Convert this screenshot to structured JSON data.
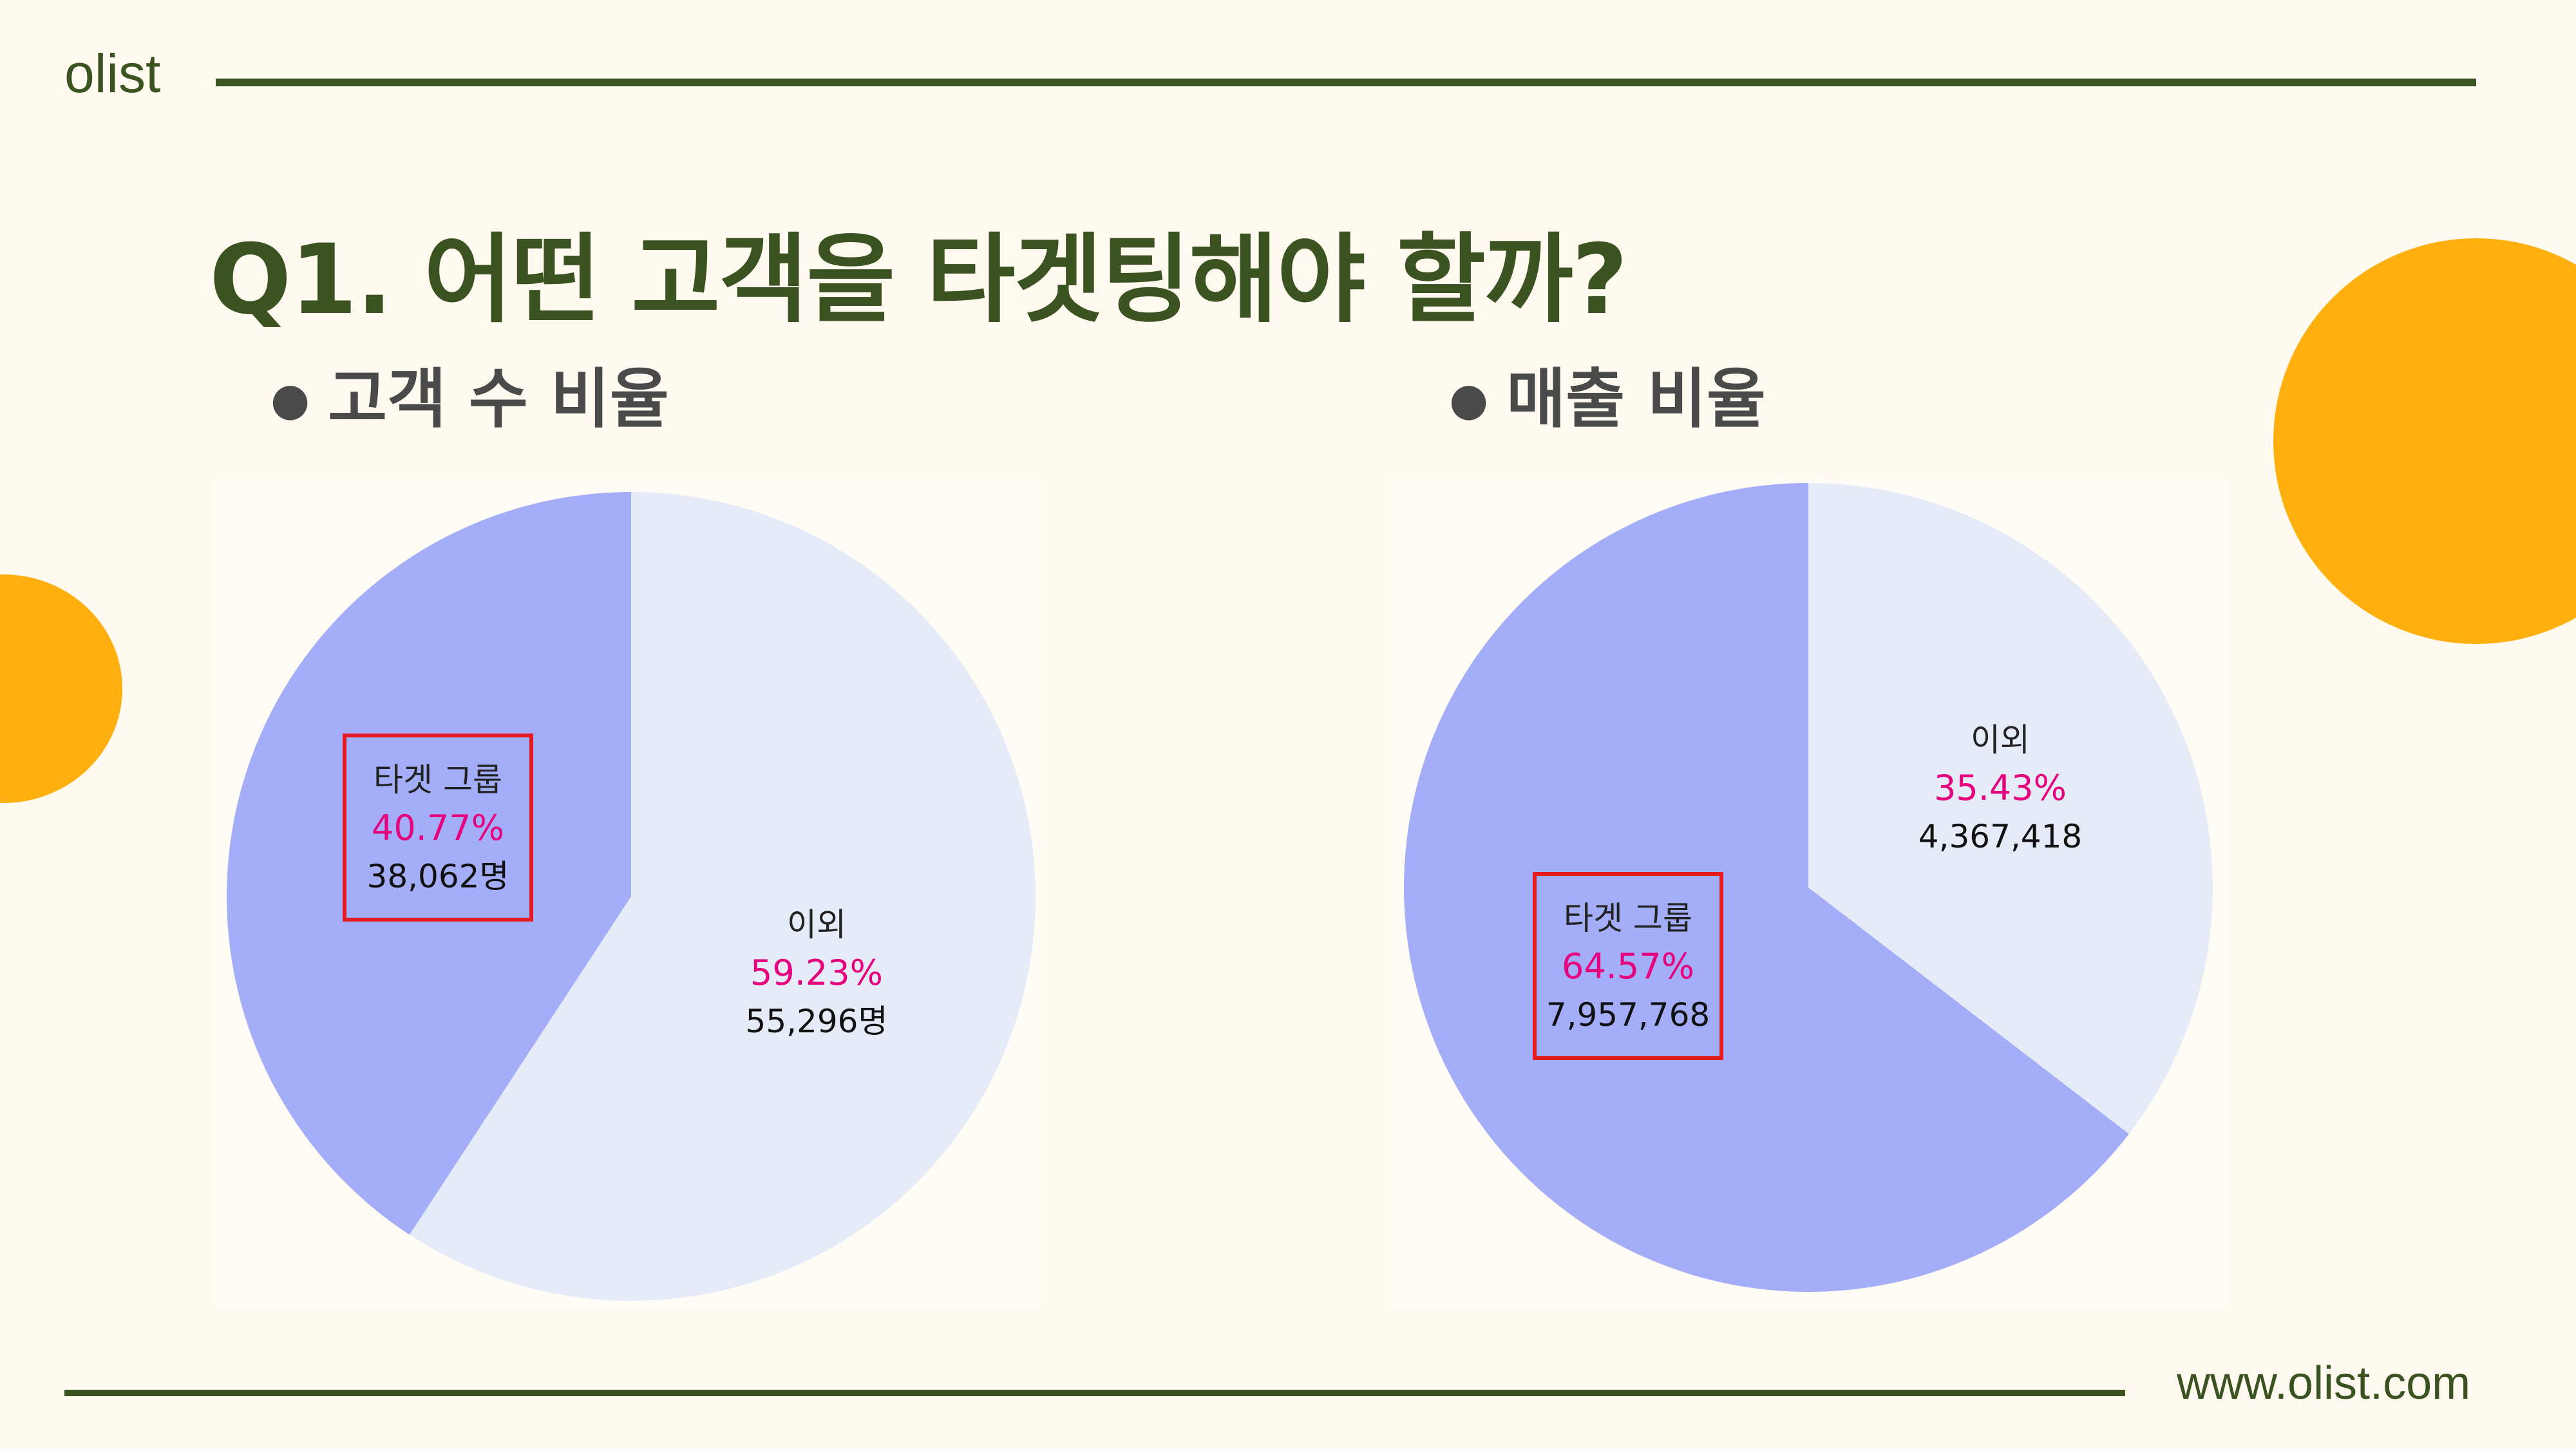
{
  "header": {
    "brand": "olist"
  },
  "title": "Q1. 어떤 고객을 타겟팅해야 할까?",
  "footer": {
    "url": "www.olist.com"
  },
  "colors": {
    "accent_green": "#3b5320",
    "decor_orange": "#ffb00e",
    "target_slice": "#a4adf8",
    "other_slice": "#e5ebf7",
    "percent_text": "#e6007e",
    "highlight_box": "#e31b23"
  },
  "chart_data": [
    {
      "type": "pie",
      "title": "고객 수 비율",
      "slices": [
        {
          "label": "타겟 그룹",
          "percent": 40.77,
          "value": 38062,
          "value_label": "38,062명",
          "highlighted": true
        },
        {
          "label": "이외",
          "percent": 59.23,
          "value": 55296,
          "value_label": "55,296명",
          "highlighted": false
        }
      ]
    },
    {
      "type": "pie",
      "title": "매출 비율",
      "slices": [
        {
          "label": "타겟 그룹",
          "percent": 64.57,
          "value": 7957768,
          "value_label": "7,957,768",
          "highlighted": true
        },
        {
          "label": "이외",
          "percent": 35.43,
          "value": 4367418,
          "value_label": "4,367,418",
          "highlighted": false
        }
      ]
    }
  ]
}
